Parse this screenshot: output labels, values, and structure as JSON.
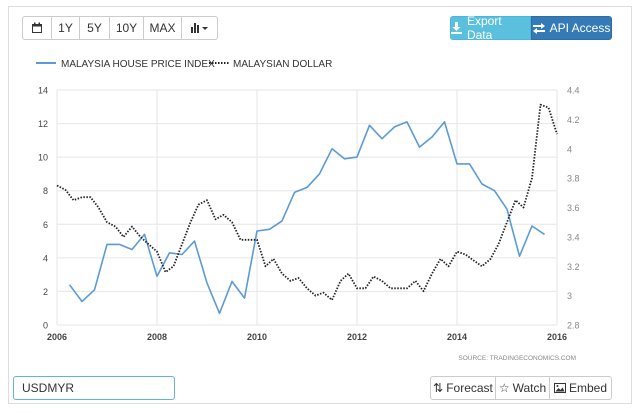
{
  "toolbar": {
    "range_buttons": [
      "1Y",
      "5Y",
      "10Y",
      "MAX"
    ],
    "export_label": "Export Data",
    "api_label": "API Access"
  },
  "footer": {
    "search_value": "USDMYR",
    "forecast_label": "Forecast",
    "watch_label": "Watch",
    "embed_label": "Embed"
  },
  "source_note": "SOURCE: TRADINGECONOMICS.COM",
  "colors": {
    "house": "#5b9bd5",
    "myr": "#222222",
    "export": "#5bc0de",
    "api": "#337ab7"
  },
  "chart_data": {
    "type": "line",
    "x_ticks": [
      "2006",
      "2008",
      "2010",
      "2012",
      "2014",
      "2016"
    ],
    "left_axis": {
      "ylim": [
        0,
        14
      ],
      "ticks": [
        "0",
        "2",
        "4",
        "6",
        "8",
        "10",
        "12",
        "14"
      ]
    },
    "right_axis": {
      "ylim": [
        2.8,
        4.4
      ],
      "ticks": [
        "2.8",
        "3",
        "3.2",
        "3.4",
        "3.6",
        "3.8",
        "4",
        "4.2",
        "4.4"
      ]
    },
    "grid": true,
    "legend_position": "top-left",
    "series": [
      {
        "name": "MALAYSIA HOUSE PRICE INDEX",
        "axis": "left",
        "style": "solid",
        "x": [
          2006.25,
          2006.5,
          2006.75,
          2007.0,
          2007.25,
          2007.5,
          2007.75,
          2008.0,
          2008.25,
          2008.5,
          2008.75,
          2009.0,
          2009.25,
          2009.5,
          2009.75,
          2010.0,
          2010.25,
          2010.5,
          2010.75,
          2011.0,
          2011.25,
          2011.5,
          2011.75,
          2012.0,
          2012.25,
          2012.5,
          2012.75,
          2013.0,
          2013.25,
          2013.5,
          2013.75,
          2014.0,
          2014.25,
          2014.5,
          2014.75,
          2015.0,
          2015.25,
          2015.5,
          2015.75
        ],
        "values": [
          2.4,
          1.4,
          2.1,
          4.8,
          4.8,
          4.5,
          5.4,
          2.9,
          4.3,
          4.2,
          5.0,
          2.5,
          0.7,
          2.6,
          1.6,
          5.6,
          5.7,
          6.2,
          7.9,
          8.2,
          9.0,
          10.5,
          9.9,
          10.0,
          11.9,
          11.1,
          11.8,
          12.1,
          10.6,
          11.2,
          12.1,
          9.6,
          9.6,
          8.4,
          8.0,
          6.9,
          4.1,
          5.9,
          5.4
        ]
      },
      {
        "name": "MALAYSIAN DOLLAR",
        "axis": "right",
        "style": "dotted",
        "x": [
          2006.0,
          2006.17,
          2006.33,
          2006.5,
          2006.67,
          2006.83,
          2007.0,
          2007.17,
          2007.33,
          2007.5,
          2007.67,
          2007.83,
          2008.0,
          2008.17,
          2008.33,
          2008.5,
          2008.67,
          2008.83,
          2009.0,
          2009.17,
          2009.33,
          2009.5,
          2009.67,
          2009.83,
          2010.0,
          2010.17,
          2010.33,
          2010.5,
          2010.67,
          2010.83,
          2011.0,
          2011.17,
          2011.33,
          2011.5,
          2011.67,
          2011.83,
          2012.0,
          2012.17,
          2012.33,
          2012.5,
          2012.67,
          2012.83,
          2013.0,
          2013.17,
          2013.33,
          2013.5,
          2013.67,
          2013.83,
          2014.0,
          2014.17,
          2014.33,
          2014.5,
          2014.67,
          2014.83,
          2015.0,
          2015.17,
          2015.33,
          2015.5,
          2015.67,
          2015.83,
          2016.0
        ],
        "values": [
          3.75,
          3.72,
          3.65,
          3.67,
          3.67,
          3.6,
          3.5,
          3.47,
          3.4,
          3.47,
          3.4,
          3.35,
          3.3,
          3.16,
          3.2,
          3.35,
          3.5,
          3.62,
          3.65,
          3.52,
          3.55,
          3.5,
          3.38,
          3.38,
          3.38,
          3.2,
          3.25,
          3.15,
          3.1,
          3.12,
          3.05,
          3.0,
          3.02,
          2.97,
          3.1,
          3.15,
          3.05,
          3.05,
          3.13,
          3.1,
          3.05,
          3.05,
          3.05,
          3.1,
          3.03,
          3.15,
          3.25,
          3.2,
          3.3,
          3.28,
          3.24,
          3.2,
          3.25,
          3.35,
          3.5,
          3.65,
          3.6,
          3.8,
          4.3,
          4.28,
          4.1
        ]
      }
    ]
  }
}
